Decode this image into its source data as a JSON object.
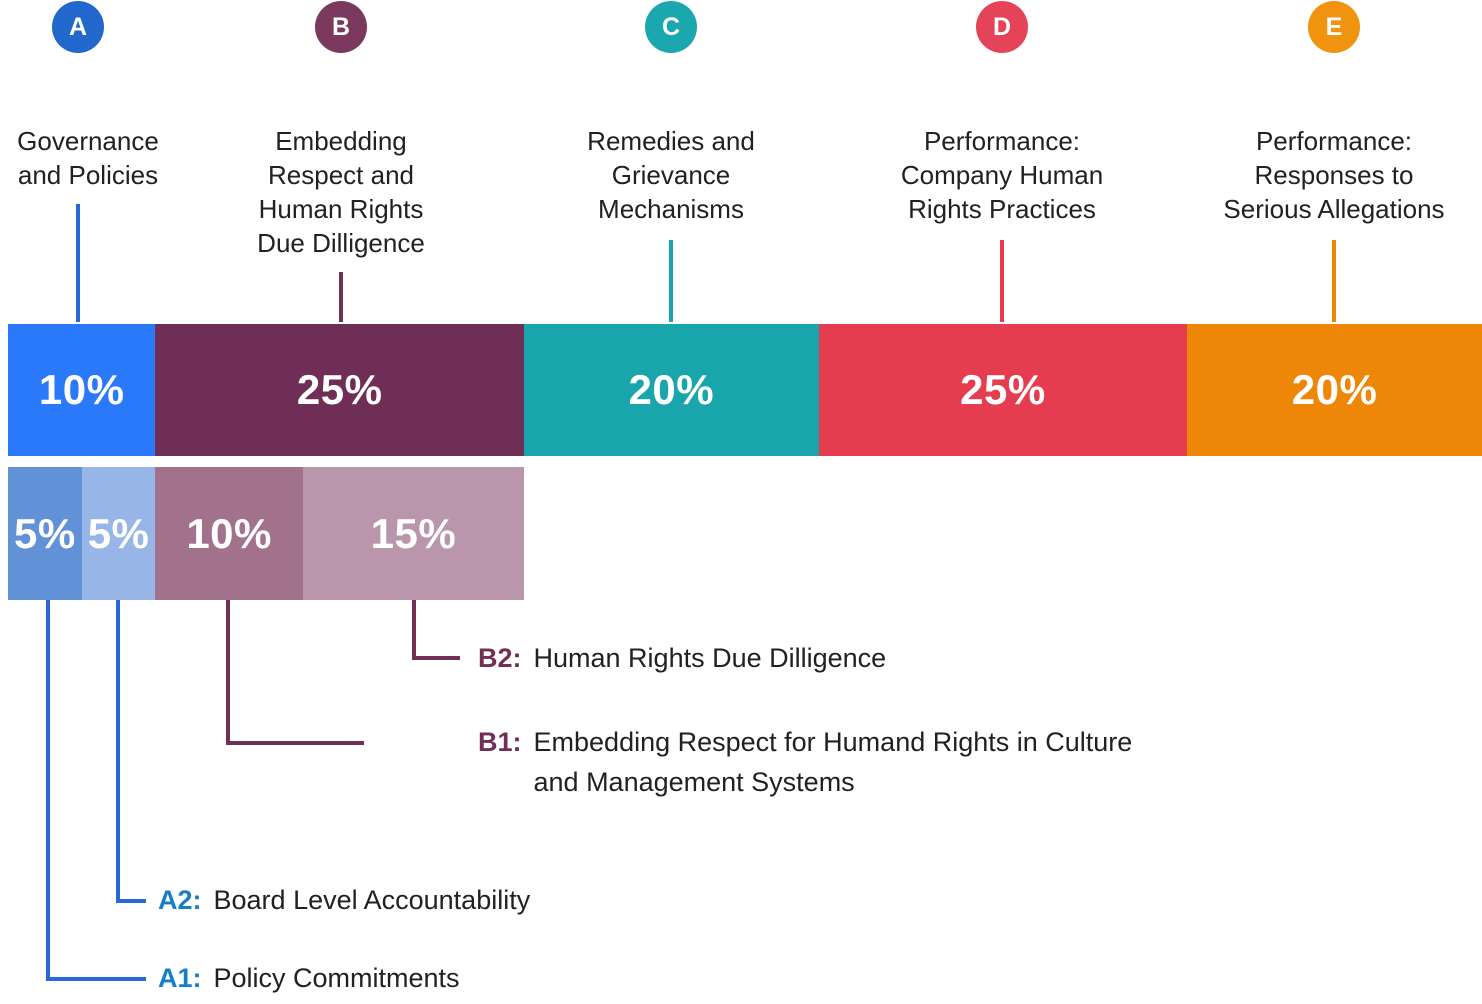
{
  "categories": [
    {
      "id": "A",
      "label": "Governance\nand Policies",
      "percent": "10%",
      "badge_color": "#2267cb",
      "bar_color": "#2a79fb",
      "connector_color": "#2a66d4"
    },
    {
      "id": "B",
      "label": "Embedding\nRespect and\nHuman Rights\nDue Dilligence",
      "percent": "25%",
      "badge_color": "#7b3a5d",
      "bar_color": "#6f2e55",
      "connector_color": "#722f55"
    },
    {
      "id": "C",
      "label": "Remedies and\nGrievance\nMechanisms",
      "percent": "20%",
      "badge_color": "#1aa7ad",
      "bar_color": "#18a6ac",
      "connector_color": "#18a6ac"
    },
    {
      "id": "D",
      "label": "Performance:\nCompany Human\nRights Practices",
      "percent": "25%",
      "badge_color": "#e54458",
      "bar_color": "#e63c50",
      "connector_color": "#e63c50"
    },
    {
      "id": "E",
      "label": "Performance:\nResponses to\nSerious Allegations",
      "percent": "20%",
      "badge_color": "#f0930f",
      "bar_color": "#ee8708",
      "connector_color": "#ee8708"
    }
  ],
  "sub_segments": [
    {
      "id": "A1",
      "percent": "5%",
      "color": "#6191d6"
    },
    {
      "id": "A2",
      "percent": "5%",
      "color": "#97b5e7"
    },
    {
      "id": "B1",
      "percent": "10%",
      "color": "#a2718c"
    },
    {
      "id": "B2",
      "percent": "15%",
      "color": "#b996ab"
    }
  ],
  "callouts": {
    "b2": {
      "prefix": "B2:",
      "text": "Human Rights Due Dilligence",
      "prefix_color": "#722f55",
      "line_color": "#722f55"
    },
    "b1": {
      "prefix": "B1:",
      "text": "Embedding Respect for Humand Rights in Culture\nand Management Systems",
      "prefix_color": "#722f55",
      "line_color": "#722f55"
    },
    "a2": {
      "prefix": "A2:",
      "text": "Board Level Accountability",
      "prefix_color": "#157ec6",
      "line_color": "#2a66d4"
    },
    "a1": {
      "prefix": "A1:",
      "text": "Policy Commitments",
      "prefix_color": "#157ec6",
      "line_color": "#2a66d4"
    }
  },
  "text_color": "#232020",
  "chart_data": {
    "type": "bar",
    "subtype": "horizontal-stacked-percentage",
    "categories": [
      "A",
      "B",
      "C",
      "D",
      "E"
    ],
    "category_labels": [
      "Governance and Policies",
      "Embedding Respect and Human Rights Due Dilligence",
      "Remedies and Grievance Mechanisms",
      "Performance: Company Human Rights Practices",
      "Performance: Responses to Serious Allegations"
    ],
    "values": [
      10,
      25,
      20,
      25,
      20
    ],
    "unit": "%",
    "sub_breakdown": [
      {
        "id": "A1",
        "parent": "A",
        "label": "Policy Commitments",
        "value": 5
      },
      {
        "id": "A2",
        "parent": "A",
        "label": "Board Level Accountability",
        "value": 5
      },
      {
        "id": "B1",
        "parent": "B",
        "label": "Embedding Respect for Humand Rights in Culture and Management Systems",
        "value": 10
      },
      {
        "id": "B2",
        "parent": "B",
        "label": "Human Rights Due Dilligence",
        "value": 15
      }
    ]
  }
}
